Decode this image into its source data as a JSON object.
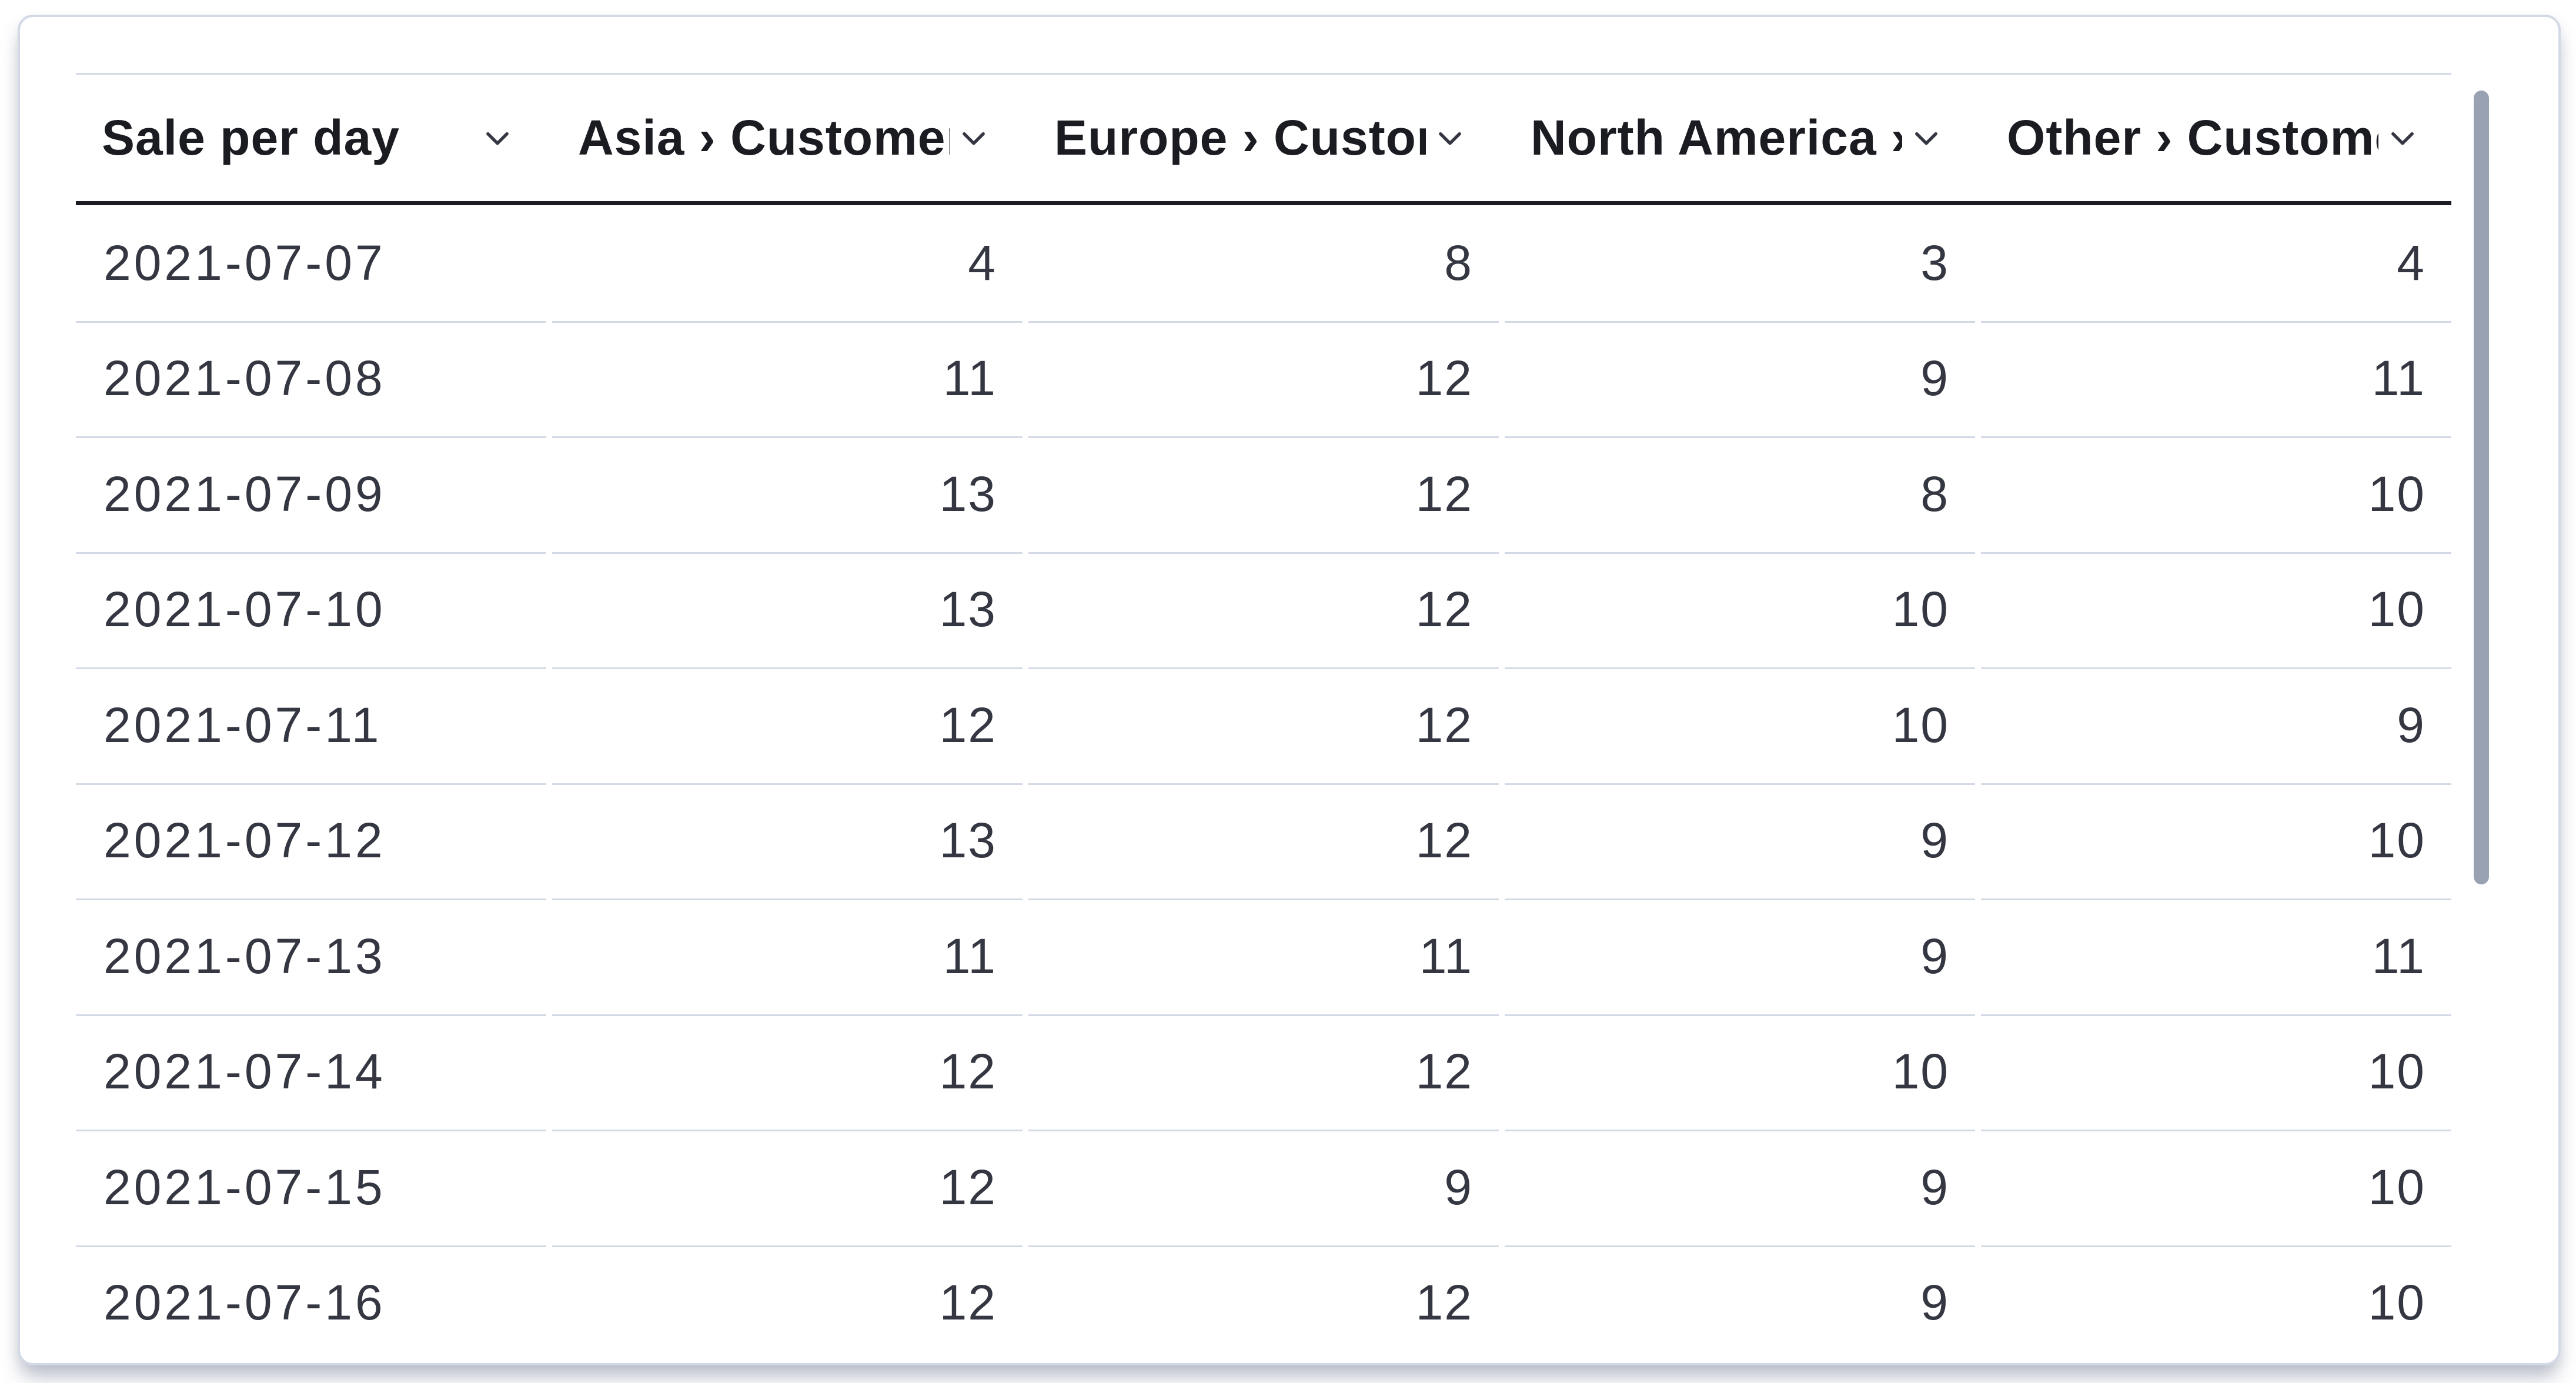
{
  "panel": {
    "type": "data-table",
    "title_column": "Sale per day"
  },
  "table": {
    "columns": [
      {
        "id": "date",
        "label": "Sale per day",
        "align": "left"
      },
      {
        "id": "asia",
        "label": "Asia › Customers",
        "align": "right"
      },
      {
        "id": "europe",
        "label": "Europe › Customers",
        "align": "right"
      },
      {
        "id": "north_america",
        "label": "North America › Customers",
        "align": "right"
      },
      {
        "id": "other",
        "label": "Other › Customers",
        "align": "right"
      }
    ],
    "rows": [
      {
        "date": "2021-07-07",
        "values": [
          "4",
          "8",
          "3",
          "4"
        ]
      },
      {
        "date": "2021-07-08",
        "values": [
          "11",
          "12",
          "9",
          "11"
        ]
      },
      {
        "date": "2021-07-09",
        "values": [
          "13",
          "12",
          "8",
          "10"
        ]
      },
      {
        "date": "2021-07-10",
        "values": [
          "13",
          "12",
          "10",
          "10"
        ]
      },
      {
        "date": "2021-07-11",
        "values": [
          "12",
          "12",
          "10",
          "9"
        ]
      },
      {
        "date": "2021-07-12",
        "values": [
          "13",
          "12",
          "9",
          "10"
        ]
      },
      {
        "date": "2021-07-13",
        "values": [
          "11",
          "11",
          "9",
          "11"
        ]
      },
      {
        "date": "2021-07-14",
        "values": [
          "12",
          "12",
          "10",
          "10"
        ]
      },
      {
        "date": "2021-07-15",
        "values": [
          "12",
          "9",
          "9",
          "10"
        ]
      },
      {
        "date": "2021-07-16",
        "values": [
          "12",
          "12",
          "9",
          "10"
        ]
      }
    ]
  },
  "icons": {
    "header_sort": "chevron-down-icon"
  },
  "scrollbar": {
    "orientation": "vertical",
    "thumb_color": "#98a2b3"
  },
  "colors": {
    "page_bg": "#ffffff",
    "card_bg": "#ffffff",
    "card_border": "#d3dae6",
    "rule_light": "#d3dae6",
    "rule_dark": "#1a1c21",
    "header_text": "#1a1c21",
    "cell_text": "#343741",
    "scrollbar_thumb": "#98a2b3"
  }
}
